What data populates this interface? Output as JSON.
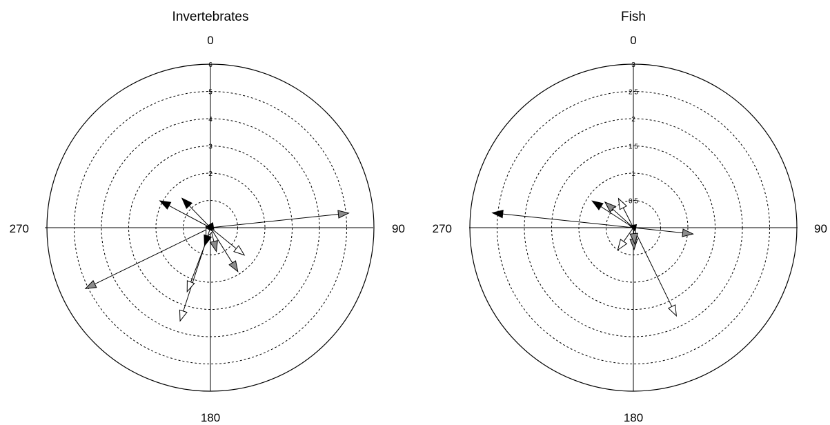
{
  "chart_data": [
    {
      "type": "polar-vector",
      "title": "Invertebrates",
      "direction_labels": [
        "0",
        "90",
        "180",
        "270"
      ],
      "rmax": 6,
      "rings": [
        1,
        2,
        3,
        4,
        5,
        6
      ],
      "ring_labels": [
        "2",
        "3",
        "4",
        "5",
        "6"
      ],
      "grid": true,
      "colors": {
        "black": "#000000",
        "gray": "#8c8c8c",
        "white": "#ffffff"
      },
      "vectors": [
        {
          "angle": 84,
          "magnitude": 5.1,
          "color": "gray",
          "start_angle": 90,
          "start_magnitude": 0
        },
        {
          "angle": 244,
          "magnitude": 5.1,
          "color": "gray",
          "start_angle": 90,
          "start_magnitude": 0
        },
        {
          "angle": 298,
          "magnitude": 2.1,
          "color": "black",
          "start_angle": 90,
          "start_magnitude": 0
        },
        {
          "angle": 316,
          "magnitude": 1.5,
          "color": "black",
          "start_angle": 90,
          "start_magnitude": 0
        },
        {
          "angle": 148,
          "magnitude": 1.9,
          "color": "gray",
          "start_angle": 90,
          "start_magnitude": 0
        },
        {
          "angle": 129,
          "magnitude": 1.6,
          "color": "white",
          "start_angle": 90,
          "start_magnitude": 0
        },
        {
          "angle": 166,
          "magnitude": 0.9,
          "color": "gray",
          "start_angle": 90,
          "start_magnitude": 0
        },
        {
          "angle": 198,
          "magnitude": 3.6,
          "color": "white",
          "start_angle": 198,
          "start_magnitude": 0.7
        },
        {
          "angle": 200,
          "magnitude": 2.5,
          "color": "white",
          "start_angle": 198,
          "start_magnitude": 0.7
        },
        {
          "angle": 204,
          "magnitude": 0.4,
          "color": "white",
          "start_angle": 90,
          "start_magnitude": 0
        },
        {
          "angle": 155,
          "magnitude": 0.1,
          "color": "black",
          "start_angle": 90,
          "start_magnitude": 0
        },
        {
          "angle": 198,
          "magnitude": 0.7,
          "color": "black",
          "start_angle": 90,
          "start_magnitude": 0
        },
        {
          "angle": 25,
          "magnitude": 0.2,
          "color": "black",
          "start_angle": 90,
          "start_magnitude": 0
        }
      ]
    },
    {
      "type": "polar-vector",
      "title": "Fish",
      "direction_labels": [
        "0",
        "90",
        "180",
        "270"
      ],
      "rmax": 3,
      "rings": [
        0.5,
        1,
        1.5,
        2,
        2.5,
        3
      ],
      "ring_labels": [
        "0.5",
        "1",
        "1.5",
        "2",
        "2.5",
        "3"
      ],
      "grid": true,
      "colors": {
        "black": "#000000",
        "gray": "#8c8c8c",
        "white": "#ffffff"
      },
      "vectors": [
        {
          "angle": 276,
          "magnitude": 2.6,
          "color": "black",
          "start_angle": 90,
          "start_magnitude": 0
        },
        {
          "angle": 96,
          "magnitude": 1.1,
          "color": "gray",
          "start_angle": 90,
          "start_magnitude": 0
        },
        {
          "angle": 154,
          "magnitude": 1.8,
          "color": "white",
          "start_angle": 90,
          "start_magnitude": 0
        },
        {
          "angle": 303,
          "magnitude": 0.9,
          "color": "black",
          "start_angle": 90,
          "start_magnitude": 0
        },
        {
          "angle": 312,
          "magnitude": 0.7,
          "color": "gray",
          "start_angle": 90,
          "start_magnitude": 0
        },
        {
          "angle": 333,
          "magnitude": 0.6,
          "color": "white",
          "start_angle": 90,
          "start_magnitude": 0
        },
        {
          "angle": 215,
          "magnitude": 0.5,
          "color": "white",
          "start_angle": 90,
          "start_magnitude": 0
        },
        {
          "angle": 178,
          "magnitude": 0.4,
          "color": "gray",
          "start_angle": 90,
          "start_magnitude": 0
        },
        {
          "angle": 175,
          "magnitude": 0.3,
          "color": "gray",
          "start_angle": 90,
          "start_magnitude": 0
        },
        {
          "angle": 45,
          "magnitude": 0.08,
          "color": "black",
          "start_angle": 90,
          "start_magnitude": 0
        }
      ]
    }
  ]
}
